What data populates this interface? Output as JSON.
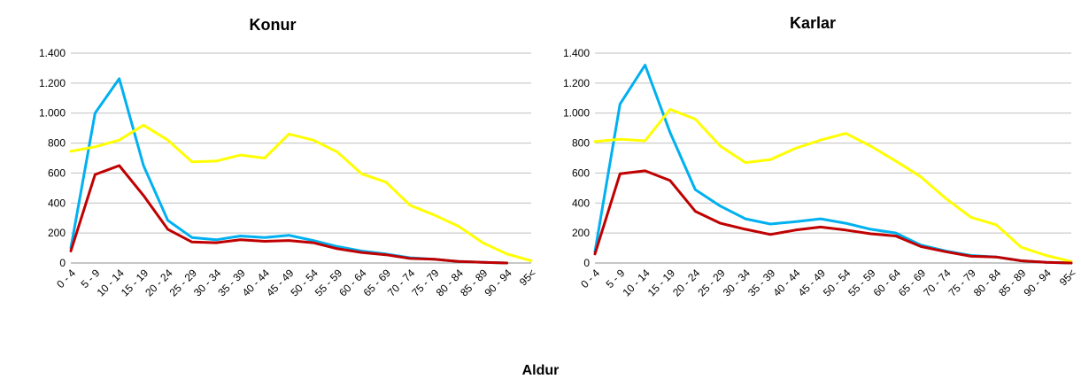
{
  "shared_xlabel": "Aldur",
  "chart_data": [
    {
      "type": "line",
      "title": "Konur",
      "xlabel": "",
      "ylabel": "",
      "ylim": [
        0,
        1400
      ],
      "yticks": [
        0,
        200,
        400,
        600,
        800,
        1000,
        1200,
        1400
      ],
      "ytick_labels": [
        "0",
        "200",
        "400",
        "600",
        "800",
        "1.000",
        "1.200",
        "1.400"
      ],
      "grid": true,
      "legend": "none",
      "categories": [
        "0 - 4",
        "5 - 9",
        "10 - 14",
        "15 - 19",
        "20 - 24",
        "25 - 29",
        "30 - 34",
        "35 - 39",
        "40 - 44",
        "45 - 49",
        "50 - 54",
        "55 - 59",
        "60 - 64",
        "65 - 69",
        "70 - 74",
        "75 - 79",
        "80 - 84",
        "85 - 89",
        "90 - 94",
        "95<"
      ],
      "series": [
        {
          "color": "#00B0F0",
          "values": [
            100,
            1000,
            1230,
            650,
            285,
            170,
            155,
            180,
            170,
            185,
            150,
            110,
            80,
            60,
            35,
            25,
            10,
            5,
            0,
            null
          ]
        },
        {
          "color": "#FFFF00",
          "values": [
            745,
            775,
            820,
            920,
            820,
            675,
            680,
            720,
            700,
            860,
            820,
            740,
            595,
            540,
            385,
            320,
            245,
            135,
            60,
            15
          ]
        },
        {
          "color": "#C00000",
          "values": [
            80,
            590,
            650,
            450,
            225,
            140,
            135,
            155,
            145,
            150,
            135,
            95,
            70,
            55,
            30,
            25,
            10,
            5,
            0,
            null
          ]
        }
      ]
    },
    {
      "type": "line",
      "title": "Karlar",
      "xlabel": "",
      "ylabel": "",
      "ylim": [
        0,
        1400
      ],
      "yticks": [
        0,
        200,
        400,
        600,
        800,
        1000,
        1200,
        1400
      ],
      "ytick_labels": [
        "0",
        "200",
        "400",
        "600",
        "800",
        "1.000",
        "1.200",
        "1.400"
      ],
      "grid": true,
      "legend": "none",
      "categories": [
        "0 - 4",
        "5 - 9",
        "10 - 14",
        "15 - 19",
        "20 - 24",
        "25 - 29",
        "30 - 34",
        "35 - 39",
        "40 - 44",
        "45 - 49",
        "50 - 54",
        "55 - 59",
        "60 - 64",
        "65 - 69",
        "70 - 74",
        "75 - 79",
        "80 - 84",
        "85 - 89",
        "90 - 94",
        "95<"
      ],
      "series": [
        {
          "color": "#00B0F0",
          "values": [
            75,
            1060,
            1320,
            870,
            490,
            380,
            295,
            260,
            275,
            295,
            265,
            225,
            200,
            120,
            80,
            50,
            40,
            15,
            5,
            0
          ]
        },
        {
          "color": "#FFFF00",
          "values": [
            810,
            825,
            815,
            1025,
            960,
            780,
            670,
            690,
            765,
            820,
            865,
            780,
            680,
            575,
            430,
            305,
            255,
            105,
            50,
            10
          ]
        },
        {
          "color": "#C00000",
          "values": [
            60,
            595,
            615,
            550,
            345,
            265,
            225,
            190,
            220,
            240,
            220,
            195,
            180,
            110,
            75,
            45,
            40,
            15,
            5,
            0
          ]
        }
      ]
    }
  ]
}
